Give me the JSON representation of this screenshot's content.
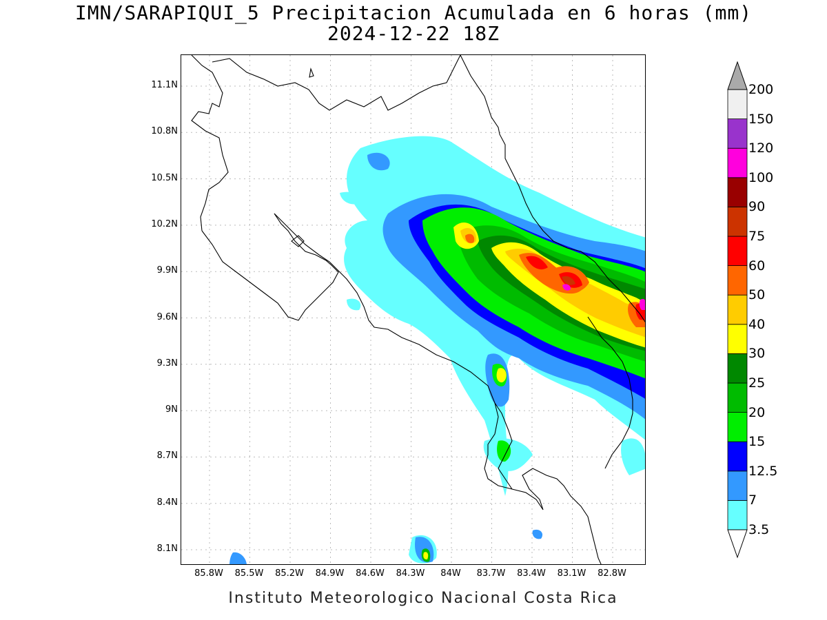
{
  "title": {
    "line1": "IMN/SARAPIQUI_5 Precipitacion Acumulada en 6 horas (mm)",
    "line2": "2024-12-22 18Z"
  },
  "footer": "Instituto Meteorologico Nacional Costa Rica",
  "map": {
    "region": "Costa Rica",
    "lon_range": [
      -86.07,
      -82.5
    ],
    "lat_range": [
      8.0,
      11.3
    ],
    "grid": "dotted",
    "lat_ticks": [
      "11.1N",
      "10.8N",
      "10.5N",
      "10.2N",
      "9.9N",
      "9.6N",
      "9.3N",
      "9N",
      "8.7N",
      "8.4N",
      "8.1N"
    ],
    "lon_ticks": [
      "85.8W",
      "85.5W",
      "85.2W",
      "84.9W",
      "84.6W",
      "84.3W",
      "84W",
      "83.7W",
      "83.4W",
      "83.1W",
      "82.8W"
    ]
  },
  "colorbar": {
    "unit": "mm",
    "labels": [
      "3.5",
      "7",
      "12.5",
      "15",
      "20",
      "25",
      "30",
      "40",
      "50",
      "60",
      "75",
      "90",
      "100",
      "120",
      "150",
      "200"
    ],
    "colors": [
      "#66ffff",
      "#3399ff",
      "#0000ff",
      "#00ee00",
      "#00bb00",
      "#008800",
      "#ffff00",
      "#ffcc00",
      "#ff6600",
      "#ff0000",
      "#cc3300",
      "#990000",
      "#ff00dd",
      "#9933cc",
      "#f0f0f0",
      "#aaaaaa"
    ]
  }
}
